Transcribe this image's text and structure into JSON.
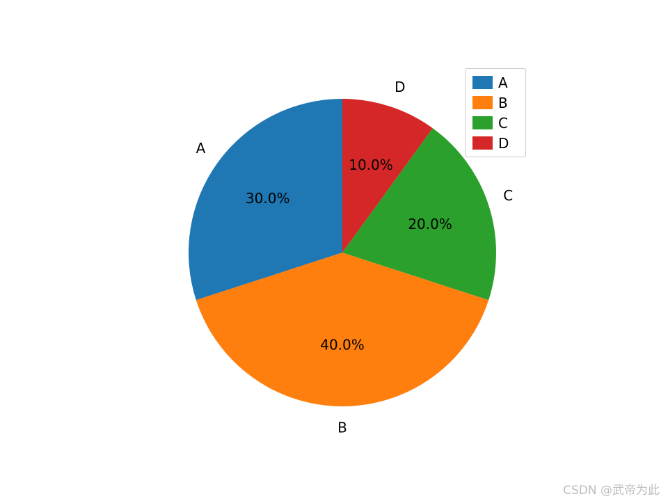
{
  "chart_data": {
    "type": "pie",
    "title": "",
    "labels": [
      "A",
      "B",
      "C",
      "D"
    ],
    "values": [
      30.0,
      40.0,
      20.0,
      10.0
    ],
    "percent_labels": [
      "30.0%",
      "40.0%",
      "20.0%",
      "10.0%"
    ],
    "colors": [
      "#1f77b4",
      "#ff7f0e",
      "#2ca02c",
      "#d62728"
    ],
    "start_angle": 90,
    "direction": "counterclockwise",
    "pct_distance": 0.6,
    "label_distance": 1.1,
    "legend": {
      "position": "upper right",
      "entries": [
        "A",
        "B",
        "C",
        "D"
      ]
    }
  },
  "watermark": "CSDN @武帝为此"
}
